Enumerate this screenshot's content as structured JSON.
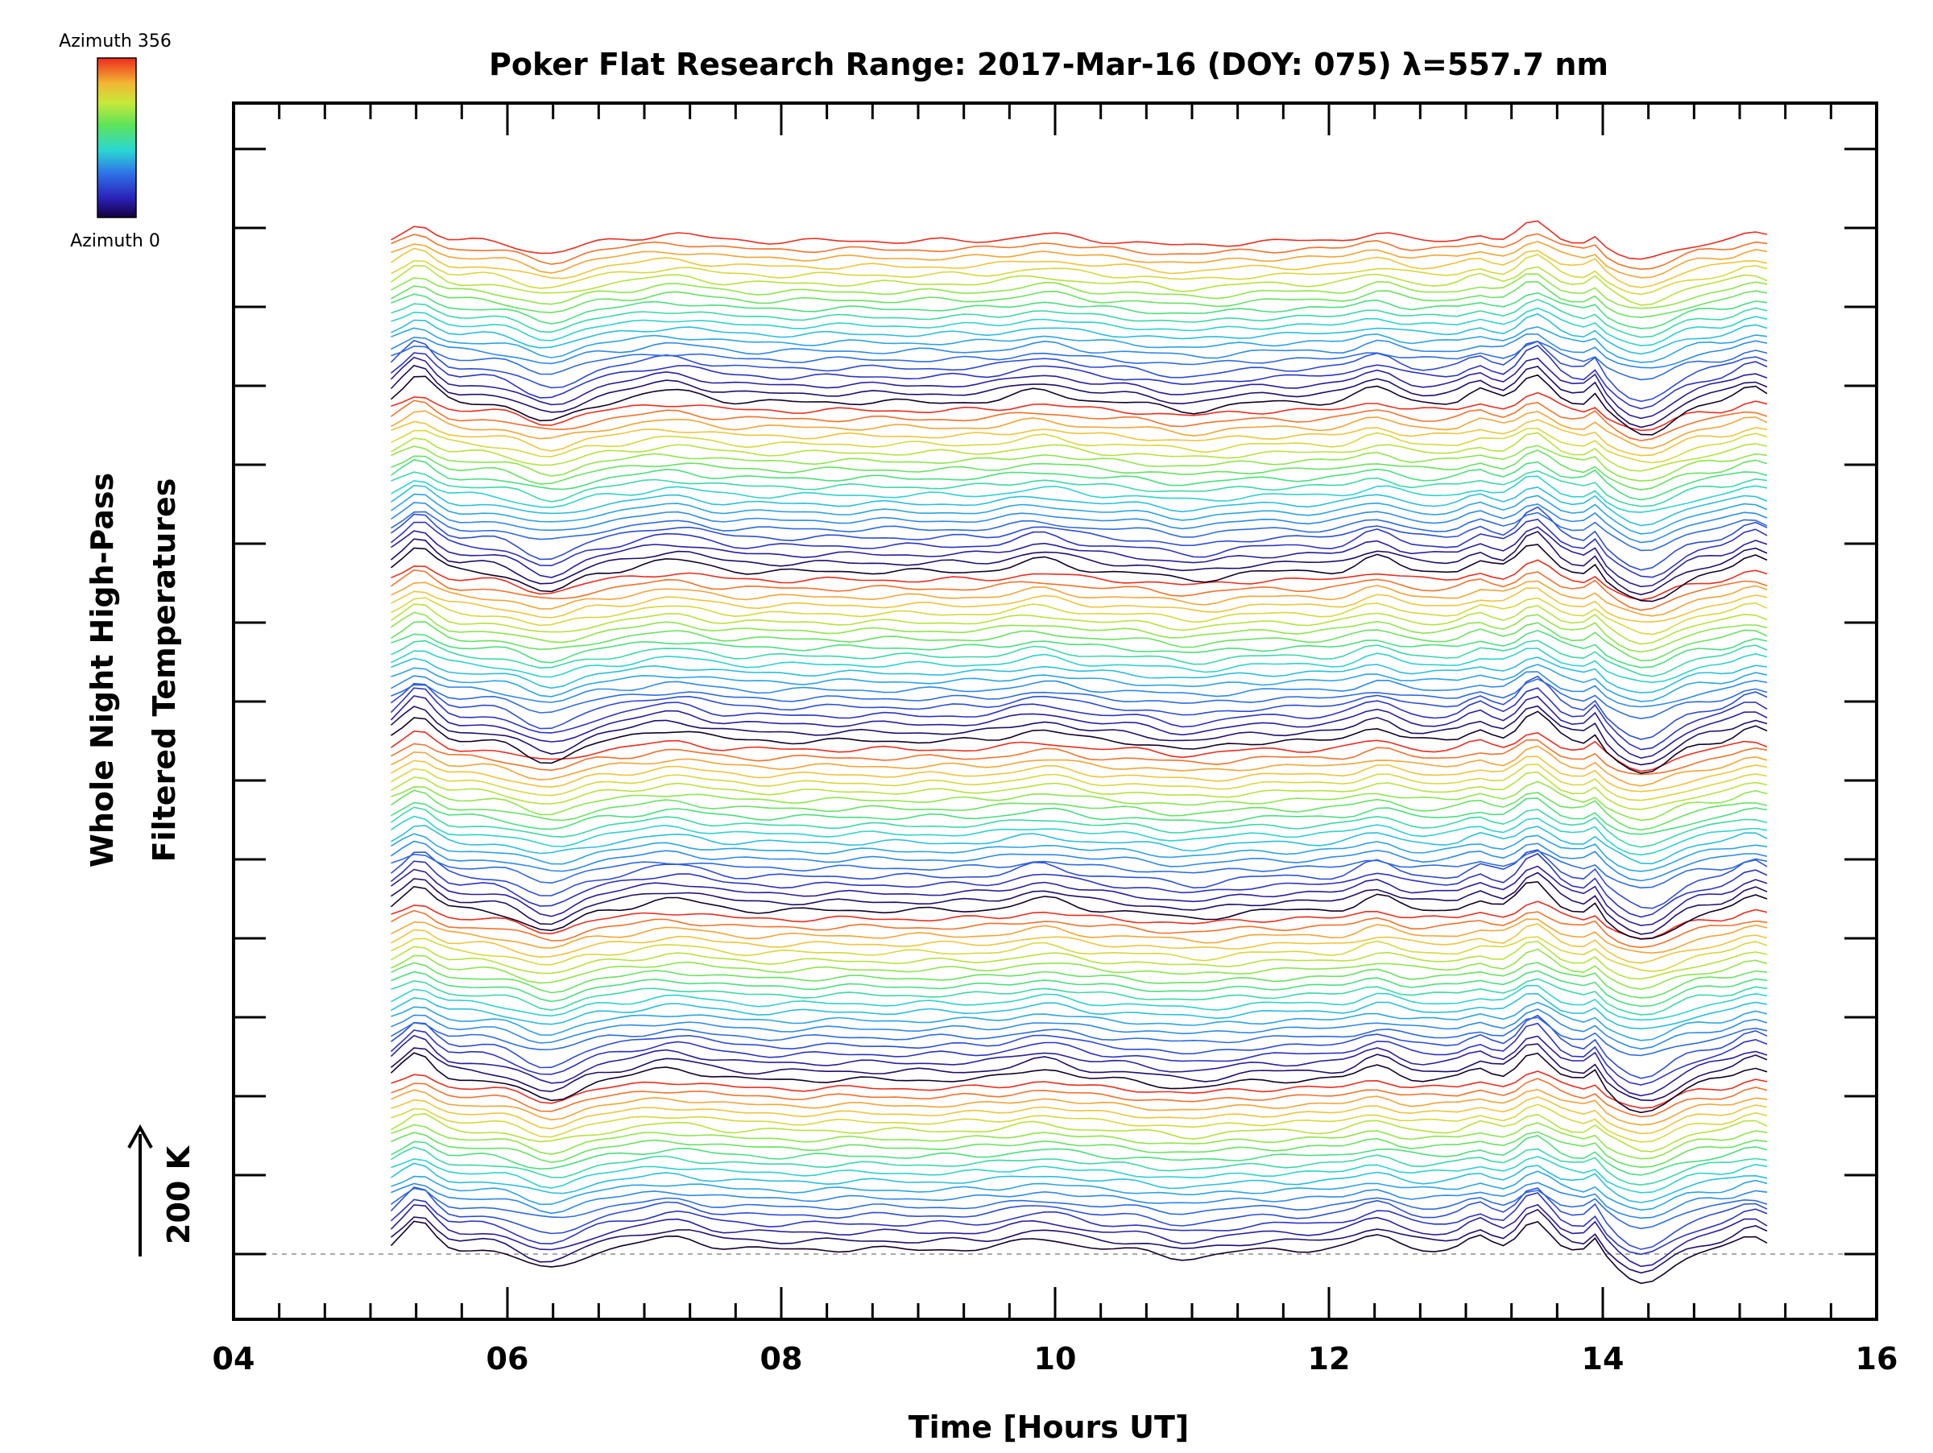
{
  "chart_data": {
    "type": "line",
    "title": "Poker Flat Research Range: 2017-Mar-16 (DOY: 075) λ=557.7 nm",
    "xlabel": "Time [Hours UT]",
    "ylabel_line1": "Whole Night High-Pass",
    "ylabel_line2": "Filtered Temperatures",
    "xlim": [
      4,
      16
    ],
    "x_ticks": [
      "04",
      "06",
      "08",
      "10",
      "12",
      "14",
      "16"
    ],
    "x_tick_values": [
      4,
      6,
      8,
      10,
      12,
      14,
      16
    ],
    "y_ticks_labeled": false,
    "grid": false,
    "scale_bar_label": "200 K",
    "colorbar": {
      "top_label": "Azimuth 356",
      "bottom_label": "Azimuth 0",
      "min": 0,
      "max": 356,
      "colormap": "rainbow"
    },
    "x_range_data": [
      5.15,
      15.2
    ],
    "line_groups": 6,
    "lines_per_group": 20,
    "num_traces": 120,
    "features": [
      {
        "x": 12.35,
        "description": "bump"
      },
      {
        "x": 13.5,
        "description": "peak"
      },
      {
        "x": 14.3,
        "description": "trough"
      }
    ],
    "colors": {
      "axis": "#000000",
      "baseline_dashed": "#999999"
    }
  }
}
